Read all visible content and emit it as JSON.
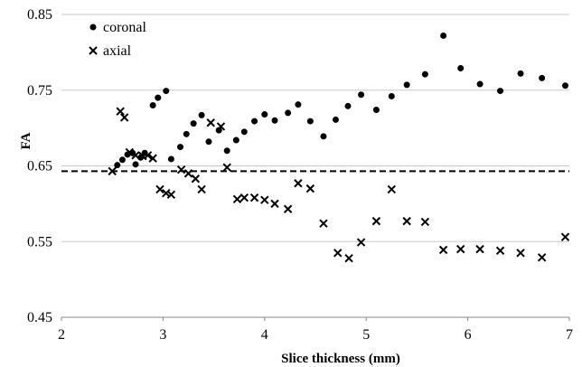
{
  "chart_data": {
    "type": "scatter",
    "xlabel": "Slice thickness (mm)",
    "ylabel": "FA",
    "xlim": [
      2,
      7
    ],
    "ylim": [
      0.45,
      0.85
    ],
    "x_ticks": [
      "2",
      "3",
      "4",
      "5",
      "6",
      "7"
    ],
    "y_ticks": [
      "0.45",
      "0.55",
      "0.65",
      "0.75",
      "0.85"
    ],
    "grid": "horizontal",
    "legend_position": "top-left",
    "reference_line": {
      "y": 0.643,
      "style": "dashed"
    },
    "series": [
      {
        "name": "coronal",
        "marker": "circle",
        "points": [
          [
            2.55,
            0.651
          ],
          [
            2.6,
            0.658
          ],
          [
            2.65,
            0.665
          ],
          [
            2.7,
            0.667
          ],
          [
            2.73,
            0.652
          ],
          [
            2.78,
            0.661
          ],
          [
            2.82,
            0.667
          ],
          [
            2.9,
            0.73
          ],
          [
            2.95,
            0.74
          ],
          [
            3.03,
            0.749
          ],
          [
            3.08,
            0.659
          ],
          [
            3.17,
            0.675
          ],
          [
            3.23,
            0.692
          ],
          [
            3.3,
            0.706
          ],
          [
            3.38,
            0.717
          ],
          [
            3.45,
            0.682
          ],
          [
            3.55,
            0.697
          ],
          [
            3.63,
            0.67
          ],
          [
            3.72,
            0.684
          ],
          [
            3.8,
            0.695
          ],
          [
            3.9,
            0.709
          ],
          [
            4.0,
            0.718
          ],
          [
            4.1,
            0.71
          ],
          [
            4.23,
            0.72
          ],
          [
            4.33,
            0.731
          ],
          [
            4.45,
            0.709
          ],
          [
            4.58,
            0.689
          ],
          [
            4.7,
            0.711
          ],
          [
            4.82,
            0.729
          ],
          [
            4.95,
            0.744
          ],
          [
            5.1,
            0.724
          ],
          [
            5.25,
            0.742
          ],
          [
            5.4,
            0.757
          ],
          [
            5.58,
            0.771
          ],
          [
            5.76,
            0.822
          ],
          [
            5.93,
            0.779
          ],
          [
            6.12,
            0.758
          ],
          [
            6.32,
            0.749
          ],
          [
            6.52,
            0.772
          ],
          [
            6.73,
            0.766
          ],
          [
            6.96,
            0.756
          ]
        ]
      },
      {
        "name": "axial",
        "marker": "x",
        "points": [
          [
            2.5,
            0.643
          ],
          [
            2.58,
            0.722
          ],
          [
            2.62,
            0.714
          ],
          [
            2.67,
            0.668
          ],
          [
            2.73,
            0.664
          ],
          [
            2.8,
            0.663
          ],
          [
            2.85,
            0.664
          ],
          [
            2.9,
            0.66
          ],
          [
            2.97,
            0.619
          ],
          [
            3.03,
            0.614
          ],
          [
            3.08,
            0.612
          ],
          [
            3.18,
            0.645
          ],
          [
            3.25,
            0.64
          ],
          [
            3.32,
            0.633
          ],
          [
            3.38,
            0.619
          ],
          [
            3.47,
            0.707
          ],
          [
            3.57,
            0.702
          ],
          [
            3.63,
            0.648
          ],
          [
            3.73,
            0.606
          ],
          [
            3.8,
            0.608
          ],
          [
            3.9,
            0.608
          ],
          [
            4.0,
            0.605
          ],
          [
            4.1,
            0.6
          ],
          [
            4.23,
            0.593
          ],
          [
            4.33,
            0.627
          ],
          [
            4.45,
            0.62
          ],
          [
            4.58,
            0.574
          ],
          [
            4.72,
            0.535
          ],
          [
            4.83,
            0.528
          ],
          [
            4.95,
            0.549
          ],
          [
            5.1,
            0.577
          ],
          [
            5.25,
            0.619
          ],
          [
            5.4,
            0.577
          ],
          [
            5.58,
            0.576
          ],
          [
            5.76,
            0.539
          ],
          [
            5.93,
            0.54
          ],
          [
            6.12,
            0.54
          ],
          [
            6.32,
            0.538
          ],
          [
            6.52,
            0.535
          ],
          [
            6.73,
            0.529
          ],
          [
            6.96,
            0.556
          ]
        ]
      }
    ]
  }
}
